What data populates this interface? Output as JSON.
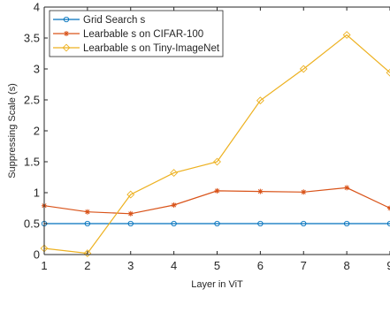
{
  "chart_data": {
    "type": "line",
    "title": "",
    "xlabel": "Layer in ViT",
    "ylabel": "Suppressing Scale (s)",
    "x": [
      1,
      2,
      3,
      4,
      5,
      6,
      7,
      8,
      9
    ],
    "xlim": [
      1,
      9
    ],
    "ylim": [
      0,
      4
    ],
    "xticks": [
      "1",
      "2",
      "3",
      "4",
      "5",
      "6",
      "7",
      "8",
      "9"
    ],
    "yticks": [
      "0",
      "0.5",
      "1",
      "1.5",
      "2",
      "2.5",
      "3",
      "3.5",
      "4"
    ],
    "grid": false,
    "legend_position": "top-left",
    "series": [
      {
        "name": "Grid Search s",
        "color": "#0072bd",
        "marker": "circle",
        "values": [
          0.5,
          0.5,
          0.5,
          0.5,
          0.5,
          0.5,
          0.5,
          0.5,
          0.5
        ]
      },
      {
        "name": "Learbable s on CIFAR-100",
        "color": "#d95319",
        "marker": "asterisk",
        "values": [
          0.79,
          0.69,
          0.66,
          0.8,
          1.03,
          1.02,
          1.01,
          1.08,
          0.75
        ]
      },
      {
        "name": "Learbable s on Tiny-ImageNet",
        "color": "#edb120",
        "marker": "diamond",
        "values": [
          0.1,
          0.02,
          0.97,
          1.32,
          1.5,
          2.49,
          3.0,
          3.55,
          2.94
        ]
      }
    ]
  }
}
